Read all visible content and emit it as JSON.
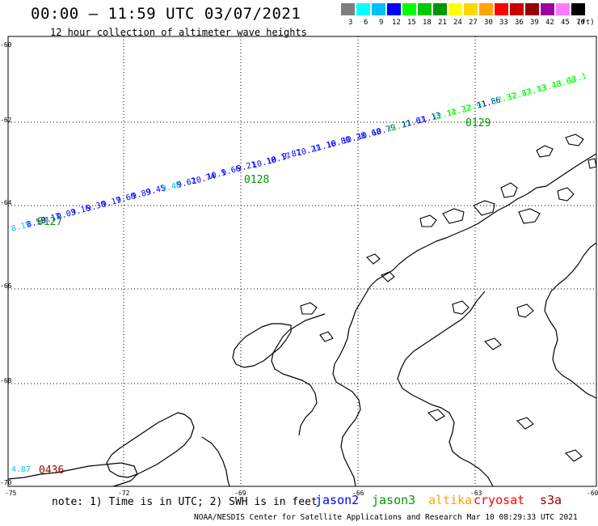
{
  "header": {
    "title": "00:00 – 11:59 UTC 03/07/2021",
    "subtitle": "12 hour collection of altimeter wave heights"
  },
  "color_scale": {
    "unit": "(ft)",
    "bins": [
      {
        "label": "3",
        "color": "#7f7f7f"
      },
      {
        "label": "6",
        "color": "#00ffff"
      },
      {
        "label": "9",
        "color": "#00bfff"
      },
      {
        "label": "12",
        "color": "#0000ff"
      },
      {
        "label": "15",
        "color": "#00ff00"
      },
      {
        "label": "18",
        "color": "#00c800"
      },
      {
        "label": "21",
        "color": "#009600"
      },
      {
        "label": "24",
        "color": "#ffff00"
      },
      {
        "label": "27",
        "color": "#ffd700"
      },
      {
        "label": "30",
        "color": "#ffa500"
      },
      {
        "label": "33",
        "color": "#ff0000"
      },
      {
        "label": "36",
        "color": "#c80000"
      },
      {
        "label": "39",
        "color": "#960000"
      },
      {
        "label": "42",
        "color": "#a000a0"
      },
      {
        "label": "45",
        "color": "#ff78ff"
      },
      {
        "label": "70",
        "color": "#000000"
      }
    ]
  },
  "grid": {
    "lat_labels": [
      "-60",
      "-62",
      "-64",
      "-66",
      "-68",
      "-70"
    ],
    "lon_labels": [
      "-75",
      "-72",
      "-69",
      "-66",
      "-63",
      "-60"
    ]
  },
  "passes": [
    {
      "id": "0127",
      "color": "#009600"
    },
    {
      "id": "0128",
      "color": "#009600"
    },
    {
      "id": "0129",
      "color": "#009600"
    },
    {
      "id": "0436",
      "color": "#960000"
    }
  ],
  "track_values": [
    {
      "v": "8.19",
      "c": "#00bfff"
    },
    {
      "v": "8.50",
      "c": "#0000ff"
    },
    {
      "v": "9.17",
      "c": "#0000ff"
    },
    {
      "v": "9.03",
      "c": "#0000ff"
    },
    {
      "v": "9.16",
      "c": "#0000ff"
    },
    {
      "v": "9.30",
      "c": "#0000ff"
    },
    {
      "v": "9.17",
      "c": "#0000ff"
    },
    {
      "v": "9.60",
      "c": "#0000ff"
    },
    {
      "v": "9.89",
      "c": "#0000ff"
    },
    {
      "v": "9.45",
      "c": "#0000ff"
    },
    {
      "v": "9.48",
      "c": "#00bfff"
    },
    {
      "v": "9.62",
      "c": "#0000ff"
    },
    {
      "v": "10.74",
      "c": "#0000ff"
    },
    {
      "v": "10.1",
      "c": "#0000ff"
    },
    {
      "v": "9.66",
      "c": "#0000ff"
    },
    {
      "v": "9.21",
      "c": "#0000ff"
    },
    {
      "v": "10.10",
      "c": "#0000ff"
    },
    {
      "v": "10.17",
      "c": "#0000ff"
    },
    {
      "v": "9.87",
      "c": "#0000ff"
    },
    {
      "v": "10.21",
      "c": "#0000ff"
    },
    {
      "v": "11.16",
      "c": "#0000ff"
    },
    {
      "v": "10.80",
      "c": "#0000ff"
    },
    {
      "v": "10.28",
      "c": "#0000ff"
    },
    {
      "v": "10.68",
      "c": "#0000ff"
    },
    {
      "v": "10.79",
      "c": "#0000ff"
    },
    {
      "v": "11.27",
      "c": "#00ff00"
    },
    {
      "v": "11.61",
      "c": "#0000ff"
    },
    {
      "v": "11.13",
      "c": "#0000ff"
    },
    {
      "v": "12.14",
      "c": "#00ff00"
    },
    {
      "v": "12.22",
      "c": "#00ff00"
    },
    {
      "v": "12.91",
      "c": "#00ff00"
    },
    {
      "v": "11.86",
      "c": "#0000ff"
    },
    {
      "v": "12.37",
      "c": "#00ff00"
    },
    {
      "v": "12.87",
      "c": "#00ff00"
    },
    {
      "v": "13.13",
      "c": "#00ff00"
    },
    {
      "v": "13.48",
      "c": "#00ff00"
    },
    {
      "v": "13.68",
      "c": "#00ff00"
    },
    {
      "v": "13.1",
      "c": "#00ff00"
    }
  ],
  "south_value": {
    "v": "4.87",
    "c": "#00bfff"
  },
  "footer": {
    "note": "note: 1) Time is in UTC; 2) SWH is in feet",
    "satellites": [
      {
        "name": "jason2",
        "color": "#0000ff"
      },
      {
        "name": "jason3",
        "color": "#009600"
      },
      {
        "name": "altika",
        "color": "#ffa500"
      },
      {
        "name": "cryosat",
        "color": "#ff0000"
      },
      {
        "name": "s3a",
        "color": "#960000"
      }
    ],
    "credit": "NOAA/NESDIS Center for Satellite Applications and Research    Mar 10 08:29:33 UTC 2021"
  }
}
